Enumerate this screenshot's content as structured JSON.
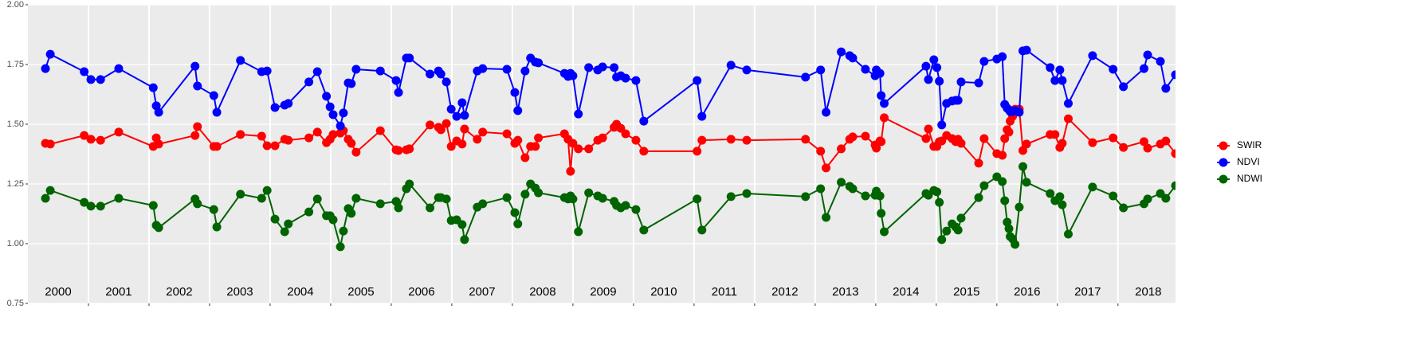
{
  "chart_data": {
    "type": "line",
    "x": [
      2000.29,
      2000.37,
      2000.93,
      2001.04,
      2001.2,
      2001.5,
      2002.07,
      2002.12,
      2002.16,
      2002.76,
      2002.8,
      2003.07,
      2003.12,
      2003.51,
      2003.86,
      2003.95,
      2004.08,
      2004.24,
      2004.3,
      2004.64,
      2004.78,
      2004.93,
      2004.99,
      2005.04,
      2005.16,
      2005.21,
      2005.29,
      2005.34,
      2005.42,
      2005.82,
      2006.08,
      2006.12,
      2006.25,
      2006.3,
      2006.64,
      2006.78,
      2006.82,
      2006.91,
      2006.99,
      2007.08,
      2007.17,
      2007.21,
      2007.42,
      2007.51,
      2007.91,
      2008.04,
      2008.09,
      2008.21,
      2008.3,
      2008.38,
      2008.43,
      2008.86,
      2008.92,
      2008.96,
      2009,
      2009.09,
      2009.26,
      2009.41,
      2009.49,
      2009.68,
      2009.72,
      2009.79,
      2009.87,
      2010.04,
      2010.17,
      2011.05,
      2011.13,
      2011.61,
      2011.87,
      2012.84,
      2013.09,
      2013.18,
      2013.43,
      2013.57,
      2013.62,
      2013.83,
      2013.99,
      2014.01,
      2014.07,
      2014.09,
      2014.14,
      2014.83,
      2014.87,
      2014.96,
      2015.01,
      2015.05,
      2015.09,
      2015.17,
      2015.26,
      2015.32,
      2015.36,
      2015.41,
      2015.7,
      2015.79,
      2016,
      2016.09,
      2016.13,
      2016.17,
      2016.2,
      2016.22,
      2016.26,
      2016.3,
      2016.37,
      2016.43,
      2016.49,
      2016.88,
      2016.96,
      2017.04,
      2017.08,
      2017.18,
      2017.58,
      2017.92,
      2018.09,
      2018.43,
      2018.49,
      2018.7,
      2018.79,
      2018.95
    ],
    "series": [
      {
        "name": "SWIR",
        "color": "#ff0000",
        "values": [
          1.42,
          1.417,
          1.453,
          1.437,
          1.433,
          1.467,
          1.407,
          1.443,
          1.417,
          1.453,
          1.49,
          1.407,
          1.407,
          1.457,
          1.45,
          1.41,
          1.41,
          1.437,
          1.433,
          1.443,
          1.467,
          1.423,
          1.437,
          1.457,
          1.463,
          1.473,
          1.437,
          1.42,
          1.383,
          1.473,
          1.393,
          1.39,
          1.393,
          1.397,
          1.497,
          1.487,
          1.477,
          1.503,
          1.407,
          1.43,
          1.417,
          1.48,
          1.437,
          1.467,
          1.46,
          1.42,
          1.433,
          1.36,
          1.407,
          1.407,
          1.443,
          1.46,
          1.437,
          1.303,
          1.42,
          1.397,
          1.397,
          1.433,
          1.443,
          1.487,
          1.5,
          1.483,
          1.46,
          1.433,
          1.387,
          1.387,
          1.433,
          1.437,
          1.433,
          1.437,
          1.387,
          1.317,
          1.397,
          1.437,
          1.447,
          1.45,
          1.413,
          1.4,
          1.43,
          1.427,
          1.527,
          1.44,
          1.48,
          1.407,
          1.407,
          1.427,
          1.43,
          1.453,
          1.44,
          1.427,
          1.437,
          1.42,
          1.337,
          1.44,
          1.377,
          1.37,
          1.44,
          1.477,
          1.467,
          1.513,
          1.533,
          1.563,
          1.563,
          1.39,
          1.417,
          1.457,
          1.457,
          1.403,
          1.42,
          1.523,
          1.423,
          1.443,
          1.403,
          1.427,
          1.4,
          1.417,
          1.43,
          1.377
        ]
      },
      {
        "name": "NDVI",
        "color": "#0000ff",
        "values": [
          1.733,
          1.793,
          1.72,
          1.687,
          1.687,
          1.733,
          1.653,
          1.577,
          1.55,
          1.743,
          1.66,
          1.62,
          1.55,
          1.767,
          1.72,
          1.723,
          1.57,
          1.58,
          1.587,
          1.677,
          1.72,
          1.617,
          1.573,
          1.54,
          1.493,
          1.547,
          1.673,
          1.67,
          1.73,
          1.723,
          1.683,
          1.633,
          1.777,
          1.777,
          1.71,
          1.723,
          1.71,
          1.677,
          1.563,
          1.533,
          1.59,
          1.537,
          1.723,
          1.733,
          1.73,
          1.633,
          1.557,
          1.723,
          1.777,
          1.76,
          1.757,
          1.713,
          1.7,
          1.713,
          1.703,
          1.543,
          1.737,
          1.727,
          1.74,
          1.737,
          1.697,
          1.703,
          1.693,
          1.683,
          1.513,
          1.683,
          1.533,
          1.747,
          1.727,
          1.697,
          1.727,
          1.55,
          1.803,
          1.787,
          1.777,
          1.73,
          1.703,
          1.727,
          1.713,
          1.62,
          1.587,
          1.743,
          1.687,
          1.77,
          1.737,
          1.68,
          1.497,
          1.587,
          1.597,
          1.6,
          1.6,
          1.677,
          1.673,
          1.763,
          1.773,
          1.783,
          1.583,
          1.567,
          1.56,
          1.553,
          1.553,
          1.557,
          1.55,
          1.807,
          1.81,
          1.737,
          1.683,
          1.727,
          1.683,
          1.587,
          1.787,
          1.73,
          1.657,
          1.733,
          1.79,
          1.763,
          1.65,
          1.707
        ]
      },
      {
        "name": "NDWI",
        "color": "#006400",
        "values": [
          1.19,
          1.223,
          1.173,
          1.157,
          1.157,
          1.19,
          1.16,
          1.077,
          1.067,
          1.187,
          1.167,
          1.143,
          1.07,
          1.207,
          1.19,
          1.223,
          1.103,
          1.05,
          1.083,
          1.133,
          1.187,
          1.117,
          1.117,
          1.1,
          0.987,
          1.053,
          1.147,
          1.127,
          1.19,
          1.167,
          1.177,
          1.15,
          1.23,
          1.25,
          1.15,
          1.193,
          1.193,
          1.187,
          1.097,
          1.1,
          1.08,
          1.017,
          1.153,
          1.167,
          1.193,
          1.13,
          1.083,
          1.207,
          1.25,
          1.233,
          1.213,
          1.193,
          1.187,
          1.2,
          1.187,
          1.05,
          1.213,
          1.2,
          1.19,
          1.177,
          1.16,
          1.15,
          1.16,
          1.143,
          1.057,
          1.187,
          1.057,
          1.197,
          1.21,
          1.197,
          1.23,
          1.11,
          1.257,
          1.24,
          1.23,
          1.2,
          1.203,
          1.22,
          1.2,
          1.127,
          1.05,
          1.21,
          1.203,
          1.223,
          1.217,
          1.173,
          1.017,
          1.053,
          1.083,
          1.07,
          1.057,
          1.107,
          1.193,
          1.243,
          1.28,
          1.26,
          1.18,
          1.09,
          1.063,
          1.03,
          1.02,
          0.997,
          1.153,
          1.323,
          1.257,
          1.21,
          1.18,
          1.197,
          1.163,
          1.04,
          1.237,
          1.2,
          1.15,
          1.167,
          1.187,
          1.21,
          1.19,
          1.243
        ]
      }
    ],
    "xlim": [
      2000,
      2018.95
    ],
    "x_grid": [
      2001,
      2002,
      2003,
      2004,
      2005,
      2006,
      2007,
      2008,
      2009,
      2010,
      2011,
      2012,
      2013,
      2014,
      2015,
      2016,
      2017,
      2018
    ],
    "year_labels": [
      {
        "value": 2000.5,
        "label": "2000"
      },
      {
        "value": 2001.5,
        "label": "2001"
      },
      {
        "value": 2002.5,
        "label": "2002"
      },
      {
        "value": 2003.5,
        "label": "2003"
      },
      {
        "value": 2004.5,
        "label": "2004"
      },
      {
        "value": 2005.5,
        "label": "2005"
      },
      {
        "value": 2006.5,
        "label": "2006"
      },
      {
        "value": 2007.5,
        "label": "2007"
      },
      {
        "value": 2008.5,
        "label": "2008"
      },
      {
        "value": 2009.5,
        "label": "2009"
      },
      {
        "value": 2010.5,
        "label": "2010"
      },
      {
        "value": 2011.5,
        "label": "2011"
      },
      {
        "value": 2012.5,
        "label": "2012"
      },
      {
        "value": 2013.5,
        "label": "2013"
      },
      {
        "value": 2014.5,
        "label": "2014"
      },
      {
        "value": 2015.5,
        "label": "2015"
      },
      {
        "value": 2016.5,
        "label": "2016"
      },
      {
        "value": 2017.5,
        "label": "2017"
      },
      {
        "value": 2018.5,
        "label": "2018"
      }
    ],
    "ylim": [
      0.75,
      2.0
    ],
    "yticks": [
      {
        "value": 0.75,
        "label": "0.75"
      },
      {
        "value": 1.0,
        "label": "1.00"
      },
      {
        "value": 1.25,
        "label": "1.25"
      },
      {
        "value": 1.5,
        "label": "1.50"
      },
      {
        "value": 1.75,
        "label": "1.75"
      },
      {
        "value": 2.0,
        "label": "2.00"
      }
    ],
    "grid": true,
    "legend": "right"
  }
}
